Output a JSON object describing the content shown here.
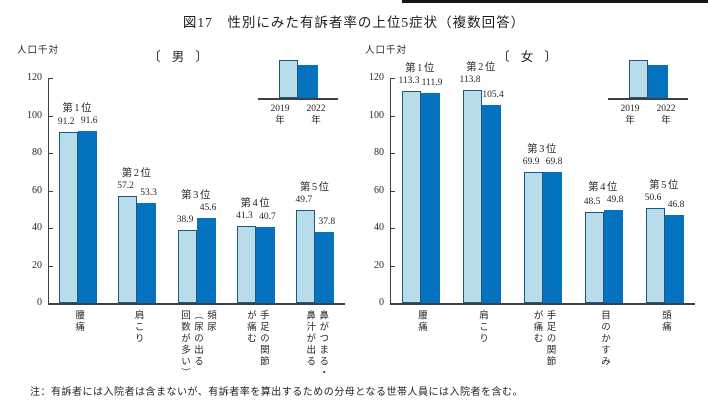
{
  "title": "図17　性別にみた有訴者率の上位5症状（複数回答）",
  "note": "注：有訴者には入院者は含まないが、有訴者率を算出するための分母となる世帯人員には入院者を含む。",
  "colors": {
    "bar_2019": "#b9dcea",
    "bar_2019_border": "#1a5a86",
    "bar_2022": "#0572c0",
    "axis": "#3f3f3f",
    "text": "#262626"
  },
  "legend": {
    "years": [
      "2019",
      "2022"
    ],
    "year_suffix": "年"
  },
  "chart_data": [
    {
      "type": "bar",
      "panel": "male",
      "panel_title": "〔 男 〕",
      "unit_label": "人口千対",
      "ylim": [
        0,
        120
      ],
      "yticks": [
        0,
        20,
        40,
        60,
        80,
        100,
        120
      ],
      "grid": false,
      "legend_position": "top-right",
      "rank_labels": [
        "第1位",
        "第2位",
        "第3位",
        "第4位",
        "第5位"
      ],
      "categories": [
        "腰痛",
        "肩こり",
        "頻尿\n（尿の出る\n回数が多い）",
        "手足の関節\nが痛む",
        "鼻がつまる・\n鼻汁が出る"
      ],
      "series": [
        {
          "name": "2019年",
          "values": [
            91.2,
            57.2,
            38.9,
            41.3,
            49.7
          ]
        },
        {
          "name": "2022年",
          "values": [
            91.6,
            53.3,
            45.6,
            40.7,
            37.8
          ]
        }
      ]
    },
    {
      "type": "bar",
      "panel": "female",
      "panel_title": "〔 女 〕",
      "unit_label": "人口千対",
      "ylim": [
        0,
        120
      ],
      "yticks": [
        0,
        20,
        40,
        60,
        80,
        100,
        120
      ],
      "grid": false,
      "legend_position": "top-right",
      "rank_labels": [
        "第1位",
        "第2位",
        "第3位",
        "第4位",
        "第5位"
      ],
      "categories": [
        "腰痛",
        "肩こり",
        "手足の関節\nが痛む",
        "目のかすみ",
        "頭痛"
      ],
      "series": [
        {
          "name": "2019年",
          "values": [
            113.3,
            113.8,
            69.9,
            48.5,
            50.6
          ]
        },
        {
          "name": "2022年",
          "values": [
            111.9,
            105.4,
            69.8,
            49.8,
            46.8
          ]
        }
      ]
    }
  ]
}
